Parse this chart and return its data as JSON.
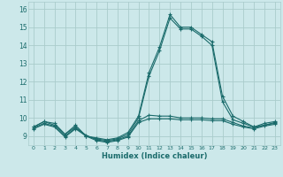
{
  "title": "",
  "xlabel": "Humidex (Indice chaleur)",
  "xlim": [
    -0.5,
    23.5
  ],
  "ylim": [
    8.5,
    16.4
  ],
  "yticks": [
    9,
    10,
    11,
    12,
    13,
    14,
    15,
    16
  ],
  "xticks": [
    0,
    1,
    2,
    3,
    4,
    5,
    6,
    7,
    8,
    9,
    10,
    11,
    12,
    13,
    14,
    15,
    16,
    17,
    18,
    19,
    20,
    21,
    22,
    23
  ],
  "background_color": "#cce8ea",
  "grid_color": "#aacccc",
  "line_color": "#1a6b6b",
  "curves": [
    [
      9.5,
      9.8,
      9.7,
      9.1,
      9.6,
      9.0,
      8.9,
      8.8,
      8.9,
      9.2,
      10.1,
      12.5,
      13.9,
      15.7,
      15.0,
      15.0,
      14.6,
      14.2,
      11.2,
      10.1,
      9.8,
      9.5,
      9.7,
      9.8
    ],
    [
      9.5,
      9.8,
      9.6,
      9.1,
      9.5,
      9.0,
      8.85,
      8.75,
      8.85,
      9.1,
      10.0,
      12.3,
      13.7,
      15.5,
      14.9,
      14.9,
      14.5,
      14.0,
      10.9,
      9.9,
      9.7,
      9.5,
      9.6,
      9.75
    ],
    [
      9.45,
      9.7,
      9.55,
      9.0,
      9.45,
      9.05,
      8.8,
      8.7,
      8.8,
      9.0,
      9.85,
      10.15,
      10.1,
      10.1,
      10.0,
      10.0,
      10.0,
      9.95,
      9.95,
      9.75,
      9.55,
      9.45,
      9.6,
      9.7
    ],
    [
      9.4,
      9.65,
      9.5,
      8.95,
      9.4,
      9.0,
      8.75,
      8.65,
      8.75,
      8.95,
      9.75,
      9.95,
      9.95,
      9.95,
      9.9,
      9.9,
      9.9,
      9.85,
      9.85,
      9.65,
      9.5,
      9.4,
      9.55,
      9.65
    ]
  ]
}
